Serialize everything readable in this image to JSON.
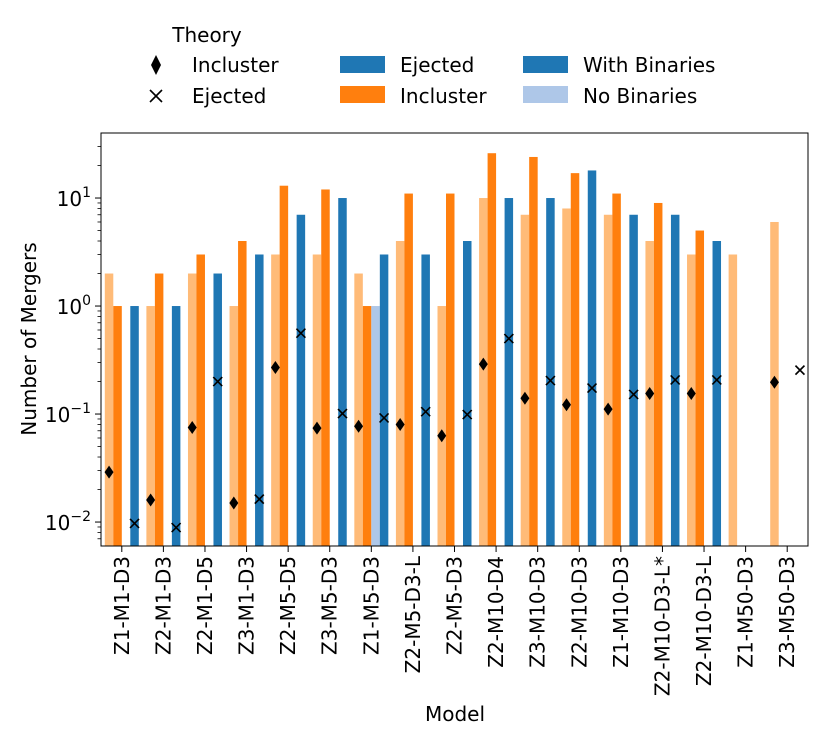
{
  "chart_data": {
    "type": "bar",
    "yscale": "log",
    "ylim": [
      0.006,
      40
    ],
    "xlabel": "Model",
    "ylabel": "Number of Mergers",
    "yticks": [
      {
        "value": 0.01,
        "mantissa": "10",
        "exp": "−2"
      },
      {
        "value": 0.1,
        "mantissa": "10",
        "exp": "−1"
      },
      {
        "value": 1,
        "mantissa": "10",
        "exp": "0"
      },
      {
        "value": 10,
        "mantissa": "10",
        "exp": "1"
      }
    ],
    "categories": [
      "Z1-M1-D3",
      "Z2-M1-D3",
      "Z2-M1-D5",
      "Z3-M1-D3",
      "Z2-M5-D5",
      "Z3-M5-D3",
      "Z1-M5-D3",
      "Z2-M5-D3-L",
      "Z2-M5-D3",
      "Z2-M10-D4",
      "Z3-M10-D3",
      "Z2-M10-D3",
      "Z1-M10-D3",
      "Z2-M10-D3-L*",
      "Z2-M10-D3-L",
      "Z1-M50-D3",
      "Z3-M50-D3"
    ],
    "series": [
      {
        "name": "Incluster (No Binaries)",
        "color": "#ffbb78",
        "values": [
          2,
          1,
          2,
          1,
          3,
          3,
          2,
          4,
          1,
          10,
          7,
          8,
          7,
          4,
          3,
          3,
          6
        ]
      },
      {
        "name": "Incluster (With Binaries)",
        "color": "#ff7f0e",
        "values": [
          1,
          2,
          3,
          4,
          13,
          12,
          1,
          11,
          11,
          26,
          24,
          17,
          11,
          9,
          5,
          null,
          null
        ]
      },
      {
        "name": "Ejected (No Binaries)",
        "color": "#aec7e8",
        "values": [
          null,
          null,
          null,
          null,
          null,
          null,
          1,
          null,
          null,
          null,
          null,
          null,
          null,
          null,
          null,
          null,
          null
        ]
      },
      {
        "name": "Ejected (With Binaries)",
        "color": "#1f77b4",
        "values": [
          1,
          1,
          2,
          3,
          7,
          10,
          3,
          3,
          4,
          10,
          10,
          18,
          7,
          7,
          4,
          null,
          null
        ]
      }
    ],
    "theory": {
      "incluster": [
        0.029,
        0.016,
        0.075,
        0.015,
        0.27,
        0.074,
        0.077,
        0.08,
        0.063,
        0.29,
        0.14,
        0.122,
        0.111,
        0.155,
        0.155,
        null,
        0.197
      ],
      "ejected": [
        0.0097,
        0.0089,
        0.2,
        0.0163,
        0.56,
        0.101,
        0.092,
        0.105,
        0.099,
        0.5,
        0.204,
        0.174,
        0.152,
        0.207,
        0.207,
        null,
        0.255
      ]
    },
    "legend": {
      "title": "Theory",
      "theory_items": [
        {
          "label": "Incluster",
          "marker": "diamond-icon"
        },
        {
          "label": "Ejected",
          "marker": "cross-icon"
        }
      ],
      "type_items": [
        {
          "label": "Ejected",
          "color": "#1f77b4"
        },
        {
          "label": "Incluster",
          "color": "#ff7f0e"
        }
      ],
      "binary_items": [
        {
          "label": "With Binaries",
          "color": "#1f77b4"
        },
        {
          "label": "No Binaries",
          "color": "#aec7e8"
        }
      ]
    }
  }
}
